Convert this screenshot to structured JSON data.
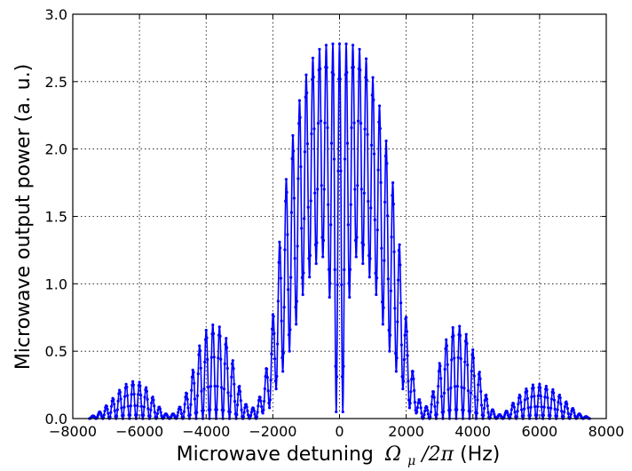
{
  "chart_data": {
    "type": "line",
    "title": "",
    "xlabel": "Microwave detuning",
    "xlabel_math": "Ω",
    "xlabel_math_sub": "μ",
    "xlabel_math_tail": "/2π",
    "xlabel_unit": " (Hz)",
    "ylabel": "Microwave output power (a. u.)",
    "xlim": [
      -8000,
      8000
    ],
    "ylim": [
      0,
      3.0
    ],
    "xticks": [
      -8000,
      -6000,
      -4000,
      -2000,
      0,
      2000,
      4000,
      6000,
      8000
    ],
    "xtick_labels": [
      "−8000",
      "−6000",
      "−4000",
      "−2000",
      "0",
      "2000",
      "4000",
      "6000",
      "8000"
    ],
    "yticks": [
      0,
      0.5,
      1.0,
      1.5,
      2.0,
      2.5,
      3.0
    ],
    "ytick_labels": [
      "0.0",
      "0.5",
      "1.0",
      "1.5",
      "2.0",
      "2.5",
      "3.0"
    ],
    "grid": true,
    "color": "#0000ff",
    "series": [
      {
        "marker": "dot",
        "fringe_period_hz": 200,
        "x_range": [
          -7500,
          7500
        ],
        "envelope_x": [
          -7500,
          -7300,
          -7100,
          -6900,
          -6700,
          -6500,
          -6300,
          -6100,
          -5900,
          -5700,
          -5500,
          -5300,
          -5100,
          -4900,
          -4700,
          -4500,
          -4300,
          -4100,
          -3900,
          -3700,
          -3500,
          -3300,
          -3100,
          -2900,
          -2700,
          -2500,
          -2300,
          -2100,
          -1900,
          -1700,
          -1500,
          -1300,
          -1100,
          -900,
          -700,
          -500,
          -300,
          -100,
          100,
          300,
          500,
          700,
          900,
          1100,
          1300,
          1500,
          1700,
          1900,
          2100,
          2300,
          2500,
          2700,
          2900,
          3100,
          3300,
          3500,
          3700,
          3900,
          4100,
          4300,
          4500,
          4700,
          4900,
          5100,
          5300,
          5500,
          5700,
          5900,
          6100,
          6300,
          6500,
          6700,
          6900,
          7100,
          7300,
          7500
        ],
        "envelope_y": [
          0.01,
          0.03,
          0.07,
          0.12,
          0.18,
          0.24,
          0.27,
          0.28,
          0.26,
          0.2,
          0.12,
          0.05,
          0.02,
          0.05,
          0.12,
          0.26,
          0.46,
          0.62,
          0.69,
          0.7,
          0.66,
          0.53,
          0.33,
          0.15,
          0.06,
          0.1,
          0.22,
          0.52,
          1.02,
          1.6,
          1.95,
          2.25,
          2.47,
          2.63,
          2.72,
          2.76,
          2.78,
          2.78,
          2.78,
          2.78,
          2.76,
          2.72,
          2.62,
          2.44,
          2.2,
          1.92,
          1.58,
          1.0,
          0.5,
          0.2,
          0.08,
          0.1,
          0.3,
          0.52,
          0.65,
          0.7,
          0.67,
          0.58,
          0.44,
          0.25,
          0.1,
          0.03,
          0.03,
          0.08,
          0.15,
          0.2,
          0.24,
          0.26,
          0.25,
          0.23,
          0.2,
          0.15,
          0.1,
          0.05,
          0.02,
          0.01
        ],
        "floor_y": [
          0.0,
          0.0,
          0.0,
          0.0,
          0.0,
          0.0,
          0.0,
          0.0,
          0.0,
          0.0,
          0.0,
          0.0,
          0.0,
          0.0,
          0.0,
          0.0,
          0.0,
          0.0,
          0.0,
          0.0,
          0.0,
          0.0,
          0.0,
          0.0,
          0.0,
          0.0,
          0.04,
          0.08,
          0.22,
          0.35,
          0.5,
          0.7,
          0.92,
          1.05,
          1.15,
          1.2,
          0.9,
          0.05,
          0.05,
          0.9,
          1.2,
          1.15,
          1.05,
          0.92,
          0.7,
          0.5,
          0.35,
          0.22,
          0.08,
          0.04,
          0.0,
          0.0,
          0.0,
          0.0,
          0.0,
          0.0,
          0.0,
          0.0,
          0.0,
          0.0,
          0.0,
          0.0,
          0.0,
          0.0,
          0.0,
          0.0,
          0.0,
          0.0,
          0.0,
          0.0,
          0.0,
          0.0,
          0.0,
          0.0,
          0.0,
          0.0
        ]
      }
    ]
  }
}
